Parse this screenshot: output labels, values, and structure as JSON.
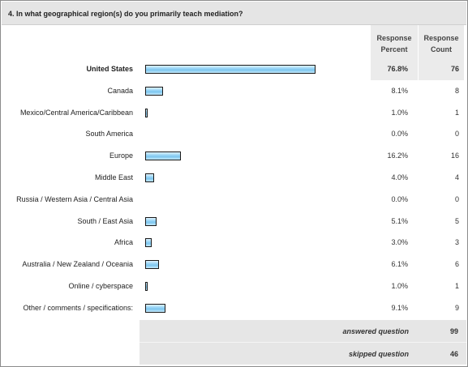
{
  "question": {
    "title": "4. In what geographical region(s) do you primarily teach mediation?"
  },
  "columns": {
    "percent_line1": "Response",
    "percent_line2": "Percent",
    "count_line1": "Response",
    "count_line2": "Count"
  },
  "chart_data": {
    "type": "bar",
    "orientation": "horizontal",
    "title": "4. In what geographical region(s) do you primarily teach mediation?",
    "categories": [
      "United States",
      "Canada",
      "Mexico/Central America/Caribbean",
      "South America",
      "Europe",
      "Middle East",
      "Russia / Western Asia / Central Asia",
      "South / East Asia",
      "Africa",
      "Australia / New Zealand / Oceania",
      "Online / cyberspace",
      "Other / comments / specifications:"
    ],
    "percent_labels": [
      "76.8%",
      "8.1%",
      "1.0%",
      "0.0%",
      "16.2%",
      "4.0%",
      "0.0%",
      "5.1%",
      "3.0%",
      "6.1%",
      "1.0%",
      "9.1%"
    ],
    "values": [
      76.8,
      8.1,
      1.0,
      0.0,
      16.2,
      4.0,
      0.0,
      5.1,
      3.0,
      6.1,
      1.0,
      9.1
    ],
    "counts": [
      "76",
      "8",
      "1",
      "0",
      "16",
      "4",
      "0",
      "5",
      "3",
      "6",
      "1",
      "9"
    ],
    "xlim": [
      0,
      100
    ],
    "bar_color": "#7cc6ef",
    "highlight_row": 0
  },
  "summary": {
    "answered_label": "answered question",
    "answered_value": "99",
    "skipped_label": "skipped question",
    "skipped_value": "46"
  }
}
